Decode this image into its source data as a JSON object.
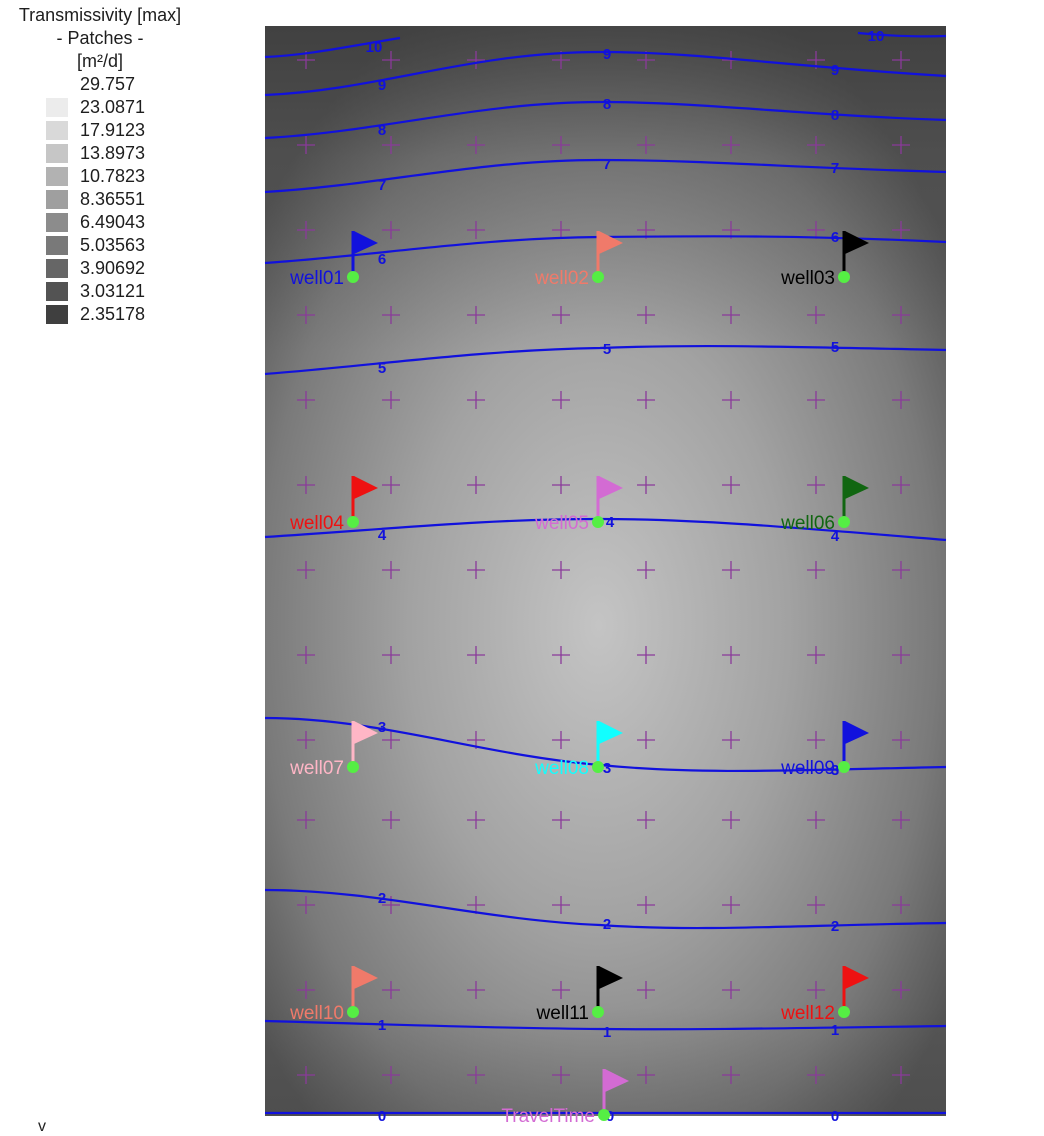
{
  "legend": {
    "title": "Transmissivity [max]",
    "subtitle": "- Patches -",
    "unit": "[m²/d]",
    "top_value": "29.757",
    "entries": [
      {
        "label": "23.0871",
        "color": "#ececec"
      },
      {
        "label": "17.9123",
        "color": "#d9d9d9"
      },
      {
        "label": "13.8973",
        "color": "#c6c6c6"
      },
      {
        "label": "10.7823",
        "color": "#b2b2b2"
      },
      {
        "label": "8.36551",
        "color": "#9f9f9f"
      },
      {
        "label": "6.49043",
        "color": "#8c8c8c"
      },
      {
        "label": "5.03563",
        "color": "#797979"
      },
      {
        "label": "3.90692",
        "color": "#666666"
      },
      {
        "label": "3.03121",
        "color": "#535353"
      },
      {
        "label": "2.35178",
        "color": "#3f3f3f"
      }
    ]
  },
  "corner_mark": "v",
  "colors": {
    "contour": "#1111dd",
    "grid_cross": "#8a3a9a",
    "well_point": "#55ee44"
  },
  "contour_labels": [
    "10",
    "9",
    "8",
    "7",
    "6",
    "5",
    "4",
    "3",
    "2",
    "1",
    "0"
  ],
  "wells": [
    {
      "name": "well01",
      "color": "#1111dd"
    },
    {
      "name": "well02",
      "color": "#f07a6a"
    },
    {
      "name": "well03",
      "color": "#000000"
    },
    {
      "name": "well04",
      "color": "#ee1111"
    },
    {
      "name": "well05",
      "color": "#d36bd3"
    },
    {
      "name": "well06",
      "color": "#116611"
    },
    {
      "name": "well07",
      "color": "#ffb6c6"
    },
    {
      "name": "well08",
      "color": "#11ffff"
    },
    {
      "name": "well09",
      "color": "#1111dd"
    },
    {
      "name": "well10",
      "color": "#f07a6a"
    },
    {
      "name": "well11",
      "color": "#000000"
    },
    {
      "name": "well12",
      "color": "#ee1111"
    },
    {
      "name": "TravelTime",
      "color": "#d36bd3"
    }
  ]
}
